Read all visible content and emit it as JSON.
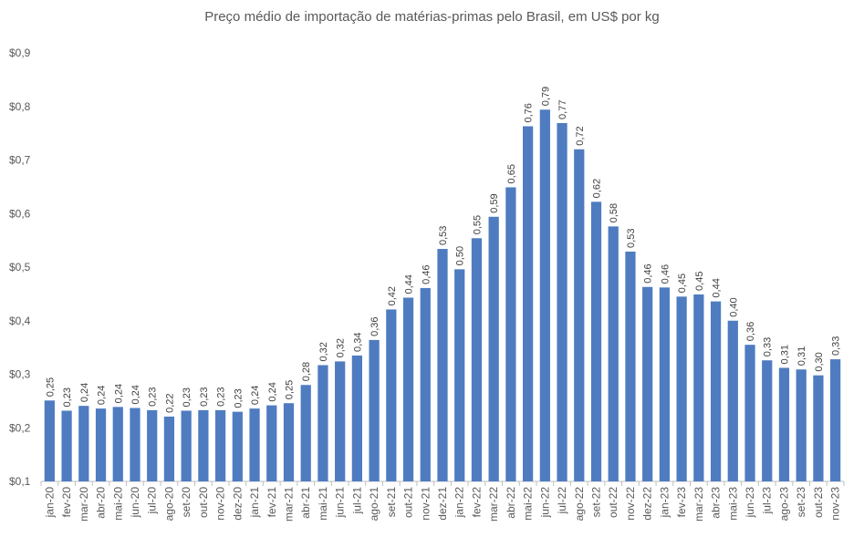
{
  "chart_data": {
    "type": "bar",
    "title": "Preço médio de importação de matérias-primas pelo Brasil, em US$ por kg",
    "xlabel": "",
    "ylabel": "",
    "ylim": [
      0.1,
      0.9
    ],
    "yticks": [
      "$0,1",
      "$0,2",
      "$0,3",
      "$0,4",
      "$0,5",
      "$0,6",
      "$0,7",
      "$0,8",
      "$0,9"
    ],
    "ytick_values": [
      0.1,
      0.2,
      0.3,
      0.4,
      0.5,
      0.6,
      0.7,
      0.8,
      0.9
    ],
    "grid": false,
    "bar_color": "#4F7CC0",
    "categories": [
      "jan-20",
      "fev-20",
      "mar-20",
      "abr-20",
      "mai-20",
      "jun-20",
      "jul-20",
      "ago-20",
      "set-20",
      "out-20",
      "nov-20",
      "dez-20",
      "jan-21",
      "fev-21",
      "mar-21",
      "abr-21",
      "mai-21",
      "jun-21",
      "jul-21",
      "ago-21",
      "set-21",
      "out-21",
      "nov-21",
      "dez-21",
      "jan-22",
      "fev-22",
      "mar-22",
      "abr-22",
      "mai-22",
      "jun-22",
      "jul-22",
      "ago-22",
      "set-22",
      "out-22",
      "nov-22",
      "dez-22",
      "jan-23",
      "fev-23",
      "mar-23",
      "abr-23",
      "mai-23",
      "jun-23",
      "jul-23",
      "ago-23",
      "set-23",
      "out-23",
      "nov-23"
    ],
    "values": [
      0.251,
      0.232,
      0.241,
      0.236,
      0.239,
      0.237,
      0.233,
      0.221,
      0.232,
      0.233,
      0.233,
      0.23,
      0.236,
      0.242,
      0.246,
      0.28,
      0.317,
      0.324,
      0.335,
      0.364,
      0.421,
      0.443,
      0.461,
      0.534,
      0.496,
      0.554,
      0.594,
      0.649,
      0.763,
      0.794,
      0.769,
      0.72,
      0.622,
      0.576,
      0.529,
      0.463,
      0.462,
      0.445,
      0.449,
      0.436,
      0.4,
      0.355,
      0.326,
      0.312,
      0.309,
      0.298,
      0.328
    ],
    "labels": [
      "0,25",
      "0,23",
      "0,24",
      "0,24",
      "0,24",
      "0,24",
      "0,23",
      "0,22",
      "0,23",
      "0,23",
      "0,23",
      "0,23",
      "0,24",
      "0,24",
      "0,25",
      "0,28",
      "0,32",
      "0,32",
      "0,34",
      "0,36",
      "0,42",
      "0,44",
      "0,46",
      "0,53",
      "0,50",
      "0,55",
      "0,59",
      "0,65",
      "0,76",
      "0,79",
      "0,77",
      "0,72",
      "0,62",
      "0,58",
      "0,53",
      "0,46",
      "0,46",
      "0,45",
      "0,45",
      "0,44",
      "0,40",
      "0,36",
      "0,33",
      "0,31",
      "0,31",
      "0,30",
      "0,33"
    ]
  }
}
